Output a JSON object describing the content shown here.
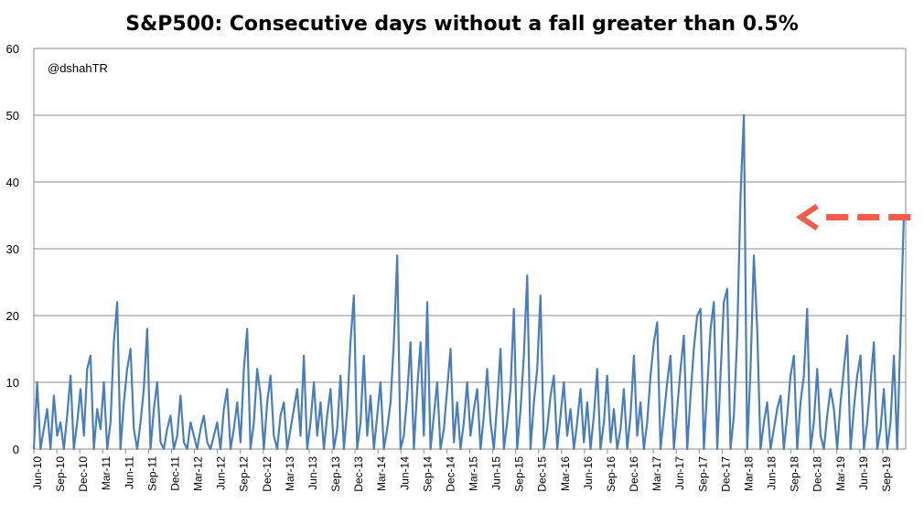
{
  "chart_data": {
    "type": "line",
    "title": "S&P500: Consecutive days without a fall greater than 0.5%",
    "watermark": "@dshahTR",
    "ylim": [
      0,
      60
    ],
    "y_ticks": [
      "0",
      "10",
      "20",
      "30",
      "40",
      "50",
      "60"
    ],
    "x_tick_labels": [
      "Jun-10",
      "Sep-10",
      "Dec-10",
      "Mar-11",
      "Jun-11",
      "Sep-11",
      "Dec-11",
      "Mar-12",
      "Jun-12",
      "Sep-12",
      "Dec-12",
      "Mar-13",
      "Jun-13",
      "Sep-13",
      "Dec-13",
      "Mar-14",
      "Jun-14",
      "Sep-14",
      "Dec-14",
      "Mar-15",
      "Jun-15",
      "Sep-15",
      "Dec-15",
      "Mar-16",
      "Jun-16",
      "Sep-16",
      "Dec-16",
      "Mar-17",
      "Jun-17",
      "Sep-17",
      "Dec-17",
      "Mar-18",
      "Jun-18",
      "Sep-18",
      "Dec-18",
      "Mar-19",
      "Jun-19",
      "Sep-19"
    ],
    "grid": true,
    "legend": "none",
    "series": [
      {
        "color": "#4a7ebb",
        "values": [
          0,
          10,
          0,
          3,
          6,
          0,
          8,
          2,
          4,
          0,
          5,
          11,
          0,
          4,
          9,
          2,
          12,
          14,
          0,
          6,
          3,
          10,
          0,
          4,
          16,
          22,
          0,
          7,
          12,
          15,
          3,
          0,
          4,
          9,
          18,
          0,
          6,
          10,
          1,
          0,
          3,
          5,
          0,
          2,
          8,
          1,
          0,
          4,
          2,
          0,
          3,
          5,
          1,
          0,
          2,
          4,
          0,
          6,
          9,
          0,
          3,
          7,
          1,
          12,
          18,
          0,
          4,
          12,
          8,
          0,
          7,
          11,
          2,
          0,
          5,
          7,
          0,
          3,
          6,
          9,
          2,
          14,
          0,
          4,
          10,
          2,
          7,
          0,
          5,
          9,
          0,
          3,
          11,
          0,
          6,
          16,
          23,
          0,
          4,
          14,
          2,
          8,
          0,
          5,
          10,
          0,
          3,
          7,
          16,
          29,
          0,
          2,
          8,
          16,
          0,
          9,
          16,
          2,
          22,
          0,
          5,
          10,
          0,
          3,
          9,
          15,
          1,
          7,
          0,
          4,
          10,
          2,
          6,
          9,
          0,
          5,
          12,
          4,
          0,
          7,
          15,
          0,
          4,
          9,
          21,
          0,
          6,
          14,
          26,
          0,
          7,
          12,
          23,
          0,
          3,
          8,
          11,
          0,
          5,
          10,
          2,
          6,
          0,
          4,
          9,
          1,
          7,
          0,
          5,
          12,
          0,
          4,
          11,
          1,
          6,
          0,
          3,
          9,
          0,
          5,
          14,
          2,
          7,
          0,
          4,
          11,
          16,
          19,
          0,
          5,
          10,
          14,
          0,
          6,
          12,
          17,
          0,
          8,
          15,
          20,
          21,
          0,
          9,
          18,
          22,
          0,
          11,
          22,
          24,
          0,
          5,
          17,
          38,
          50,
          0,
          12,
          29,
          18,
          0,
          4,
          7,
          0,
          3,
          6,
          8,
          0,
          5,
          11,
          14,
          0,
          7,
          11,
          21,
          0,
          4,
          12,
          2,
          0,
          5,
          9,
          6,
          0,
          7,
          12,
          17,
          0,
          6,
          11,
          14,
          0,
          4,
          10,
          16,
          0,
          3,
          9,
          0,
          4,
          14,
          0,
          18,
          35
        ]
      }
    ],
    "annotations": [
      {
        "type": "dashed-arrow",
        "color": "#f35b4a",
        "from_x_index": 269,
        "to_x_index": 224,
        "y": 35
      }
    ]
  }
}
